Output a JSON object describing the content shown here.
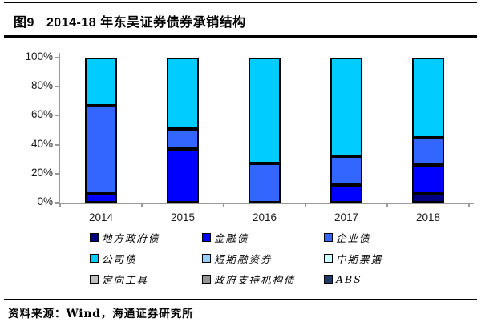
{
  "header": {
    "figure_label": "图9",
    "title": "2014-18 年东吴证券债券承销结构"
  },
  "footer": {
    "source": "资料来源：Wind，海通证券研究所"
  },
  "colors": {
    "axis": "#999999",
    "segment_border": "#000000",
    "rule": "#000000"
  },
  "chart_data": {
    "type": "bar",
    "stacked": true,
    "title": "图9 2014-18 年东吴证券债券承销结构",
    "xlabel": "",
    "ylabel": "",
    "unit": "percent",
    "ylim": [
      0,
      100
    ],
    "grid": false,
    "legend_position": "bottom",
    "y_ticks": [
      "0%",
      "20%",
      "40%",
      "60%",
      "80%",
      "100%"
    ],
    "categories": [
      "2014",
      "2015",
      "2016",
      "2017",
      "2018"
    ],
    "series": [
      {
        "name": "地方政府债",
        "color": "#000080",
        "values": [
          0,
          0,
          0,
          0,
          6
        ]
      },
      {
        "name": "金融债",
        "color": "#0000FF",
        "values": [
          6,
          37,
          0,
          12,
          20
        ]
      },
      {
        "name": "企业债",
        "color": "#3366FF",
        "values": [
          61,
          14,
          27,
          20,
          19
        ]
      },
      {
        "name": "公司债",
        "color": "#00CCFF",
        "values": [
          33,
          49,
          73,
          68,
          55
        ]
      },
      {
        "name": "短期融资券",
        "color": "#99CCFF",
        "values": [
          0,
          0,
          0,
          0,
          0
        ]
      },
      {
        "name": "中期票据",
        "color": "#CCFFFF",
        "values": [
          0,
          0,
          0,
          0,
          0
        ]
      },
      {
        "name": "定向工具",
        "color": "#BFBFBF",
        "values": [
          0,
          0,
          0,
          0,
          0
        ]
      },
      {
        "name": "政府支持机构债",
        "color": "#969696",
        "values": [
          0,
          0,
          0,
          0,
          0
        ]
      },
      {
        "name": "ABS",
        "color": "#1F3864",
        "values": [
          0,
          0,
          0,
          0,
          0
        ]
      }
    ]
  }
}
